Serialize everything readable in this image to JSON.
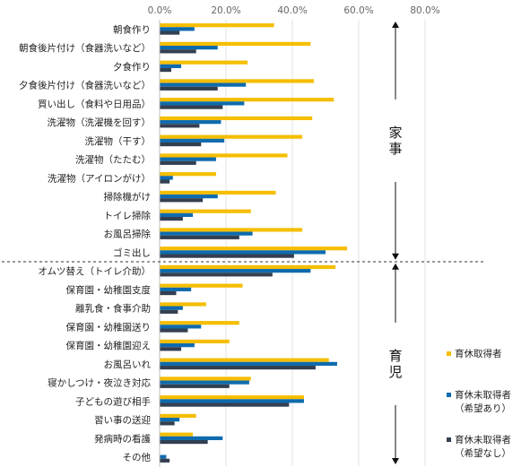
{
  "chart_data": {
    "type": "bar",
    "orientation": "horizontal",
    "categories": [
      "朝食作り",
      "朝食後片付け（食器洗いなど）",
      "夕食作り",
      "夕食後片付け（食器洗いなど）",
      "買い出し（食料や日用品）",
      "洗濯物（洗濯機を回す）",
      "洗濯物（干す）",
      "洗濯物（たたむ）",
      "洗濯物（アイロンがけ）",
      "掃除機がけ",
      "トイレ掃除",
      "お風呂掃除",
      "ゴミ出し",
      "オムツ替え（トイレ介助）",
      "保育園・幼稚園支度",
      "離乳食・食事介助",
      "保育園・幼稚園送り",
      "保育園・幼稚園迎え",
      "お風呂いれ",
      "寝かしつけ・夜泣き対応",
      "子どもの遊び相手",
      "習い事の送迎",
      "発病時の看護",
      "その他"
    ],
    "series": [
      {
        "name": "育休取得者",
        "color": "#F5BE00",
        "values": [
          34.5,
          45.5,
          26.5,
          46.5,
          52.5,
          46.0,
          43.0,
          38.5,
          17.0,
          35.0,
          27.5,
          43.0,
          56.5,
          53.0,
          25.0,
          14.0,
          24.0,
          21.0,
          51.0,
          27.5,
          43.5,
          11.0,
          10.0,
          0.0
        ]
      },
      {
        "name": "育休未取得者\n（希望あり）",
        "color": "#0E6BAE",
        "values": [
          10.5,
          17.5,
          6.5,
          26.0,
          25.5,
          18.5,
          19.5,
          17.0,
          4.0,
          17.5,
          10.0,
          28.0,
          50.0,
          45.5,
          9.5,
          7.0,
          12.5,
          10.5,
          53.5,
          27.0,
          43.5,
          6.0,
          19.0,
          2.0
        ]
      },
      {
        "name": "育休未取得者\n（希望なし）",
        "color": "#333F50",
        "values": [
          6.0,
          11.0,
          3.5,
          17.5,
          19.0,
          12.0,
          12.5,
          11.0,
          3.0,
          13.0,
          7.0,
          24.0,
          40.5,
          34.0,
          5.0,
          5.5,
          8.5,
          6.5,
          47.0,
          21.0,
          39.0,
          4.5,
          14.5,
          3.0
        ]
      }
    ],
    "xlim": [
      0,
      80
    ],
    "xticks": [
      "0.0%",
      "20.0%",
      "40.0%",
      "60.0%",
      "80.0%"
    ],
    "groups": [
      {
        "label": "家\n事",
        "from": 0,
        "to": 12
      },
      {
        "label": "育\n児",
        "from": 13,
        "to": 23
      }
    ],
    "grid": true,
    "legend": "right"
  }
}
